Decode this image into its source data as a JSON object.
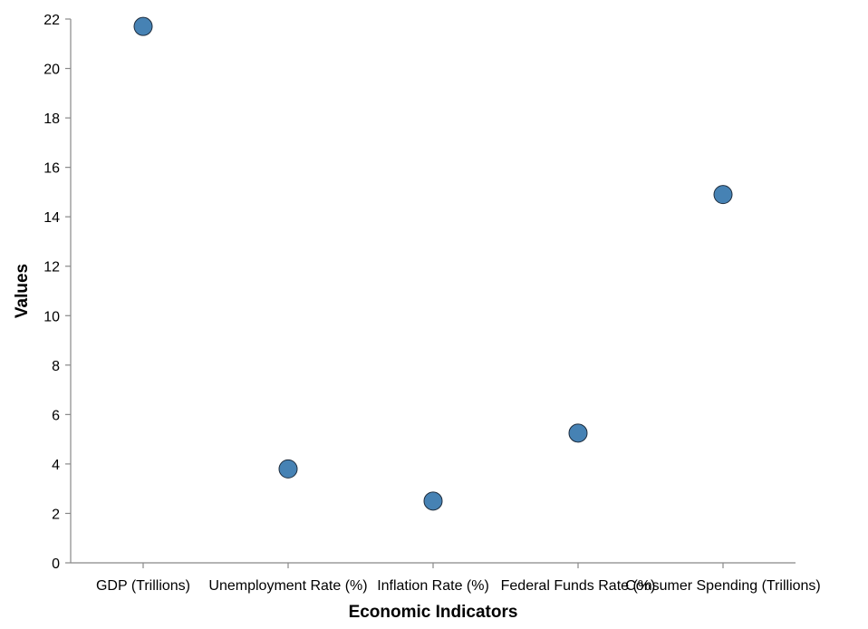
{
  "chart_data": {
    "type": "scatter",
    "title": "",
    "xlabel": "Economic Indicators",
    "ylabel": "Values",
    "categories": [
      "GDP (Trillions)",
      "Unemployment Rate (%)",
      "Inflation Rate (%)",
      "Federal Funds Rate (%)",
      "Consumer Spending (Trillions)"
    ],
    "values": [
      21.7,
      3.8,
      2.5,
      5.25,
      14.9
    ],
    "ylim": [
      0,
      22
    ],
    "yticks": [
      0,
      2,
      4,
      6,
      8,
      10,
      12,
      14,
      16,
      18,
      20,
      22
    ],
    "grid": false,
    "point_color": "#4682b4"
  }
}
